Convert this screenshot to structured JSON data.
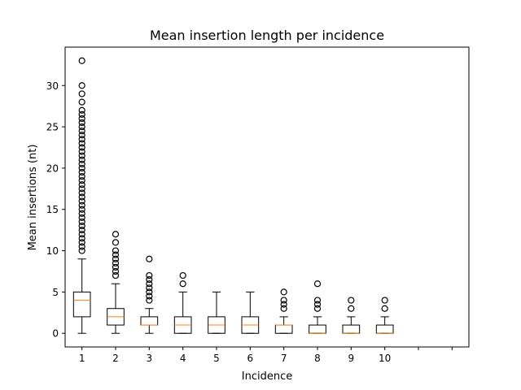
{
  "chart_data": {
    "type": "box",
    "title": "Mean insertion length per incidence",
    "xlabel": "Incidence",
    "ylabel": "Mean insertions (nt)",
    "xlim": [
      0.5,
      12.5
    ],
    "ylim": [
      -1.65,
      34.65
    ],
    "x_ticks": [
      1,
      2,
      3,
      4,
      5,
      6,
      7,
      8,
      9,
      10,
      11,
      12
    ],
    "x_tick_labels": [
      "1",
      "2",
      "3",
      "4",
      "5",
      "6",
      "7",
      "8",
      "9",
      "10",
      "",
      ""
    ],
    "y_ticks": [
      0,
      5,
      10,
      15,
      20,
      25,
      30
    ],
    "y_tick_labels": [
      "0",
      "5",
      "10",
      "15",
      "20",
      "25",
      "30"
    ],
    "grid": false,
    "colors": {
      "box": "#000000",
      "median": "#ff7f0e",
      "flier": "#000000"
    },
    "boxes": [
      {
        "category": "1",
        "whisker_low": 0,
        "q1": 2,
        "median": 4,
        "q3": 5,
        "whisker_high": 9,
        "fliers": [
          10,
          10.5,
          11,
          11.5,
          12,
          12.5,
          13,
          13.5,
          14,
          14.5,
          15,
          15.5,
          16,
          16.5,
          17,
          17.5,
          18,
          18.5,
          19,
          19.5,
          20,
          20.5,
          21,
          21.5,
          22,
          22.5,
          23,
          23.5,
          24,
          24.5,
          25,
          25.5,
          26,
          26.5,
          27,
          28,
          29,
          30,
          33
        ]
      },
      {
        "category": "2",
        "whisker_low": 0,
        "q1": 1,
        "median": 2,
        "q3": 3,
        "whisker_high": 6,
        "fliers": [
          7,
          7.5,
          8,
          8.5,
          9,
          9.5,
          10,
          11,
          12
        ]
      },
      {
        "category": "3",
        "whisker_low": 0,
        "q1": 1,
        "median": 1,
        "q3": 2,
        "whisker_high": 3,
        "fliers": [
          4,
          4.5,
          5,
          5.5,
          6,
          6.5,
          7,
          9
        ]
      },
      {
        "category": "4",
        "whisker_low": 0,
        "q1": 0,
        "median": 1,
        "q3": 2,
        "whisker_high": 5,
        "fliers": [
          6,
          7
        ]
      },
      {
        "category": "5",
        "whisker_low": 0,
        "q1": 0,
        "median": 1,
        "q3": 2,
        "whisker_high": 5,
        "fliers": []
      },
      {
        "category": "6",
        "whisker_low": 0,
        "q1": 0,
        "median": 1,
        "q3": 2,
        "whisker_high": 5,
        "fliers": []
      },
      {
        "category": "7",
        "whisker_low": 0,
        "q1": 0,
        "median": 1,
        "q3": 1,
        "whisker_high": 2,
        "fliers": [
          3,
          3.5,
          4,
          5
        ]
      },
      {
        "category": "8",
        "whisker_low": 0,
        "q1": 0,
        "median": 0,
        "q3": 1,
        "whisker_high": 2,
        "fliers": [
          3,
          3.5,
          4,
          6
        ]
      },
      {
        "category": "9",
        "whisker_low": 0,
        "q1": 0,
        "median": 0,
        "q3": 1,
        "whisker_high": 2,
        "fliers": [
          3,
          4
        ]
      },
      {
        "category": "10",
        "whisker_low": 0,
        "q1": 0,
        "median": 0,
        "q3": 1,
        "whisker_high": 2,
        "fliers": [
          3,
          4
        ]
      }
    ]
  }
}
